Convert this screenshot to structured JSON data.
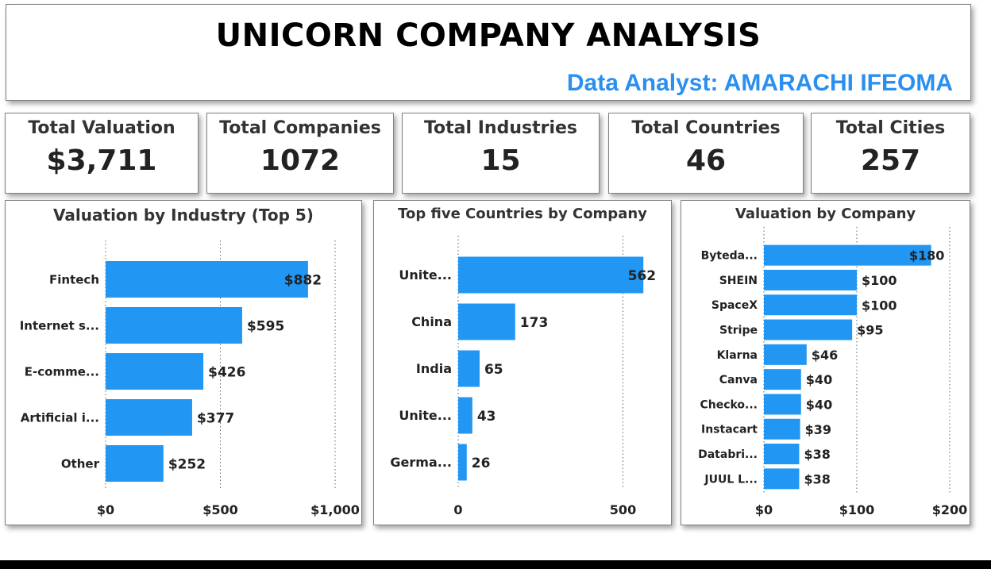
{
  "header": {
    "title": "UNICORN COMPANY ANALYSIS",
    "subtitle": "Data Analyst: AMARACHI IFEOMA"
  },
  "kpis": [
    {
      "label": "Total Valuation",
      "value": "$3,711"
    },
    {
      "label": "Total Companies",
      "value": "1072"
    },
    {
      "label": "Total Industries",
      "value": "15"
    },
    {
      "label": "Total Countries",
      "value": "46"
    },
    {
      "label": "Total Cities",
      "value": "257"
    }
  ],
  "colors": {
    "bar": "#2196f3",
    "subtitle": "#2b8ff0"
  },
  "chart_data": [
    {
      "type": "bar",
      "orientation": "horizontal",
      "title": "Valuation by Industry (Top 5)",
      "categories": [
        "Fintech",
        "Internet s...",
        "E-comme...",
        "Artificial i...",
        "Other"
      ],
      "values": [
        882,
        595,
        426,
        377,
        252
      ],
      "data_labels": [
        "$882",
        "$595",
        "$426",
        "$377",
        "$252"
      ],
      "xlim": [
        0,
        1000
      ],
      "xticks": [
        0,
        500,
        1000
      ],
      "xtick_labels": [
        "$0",
        "$500",
        "$1,000"
      ],
      "grid": "vertical dotted"
    },
    {
      "type": "bar",
      "orientation": "horizontal",
      "title": "Top five Countries by Company",
      "categories": [
        "Unite...",
        "China",
        "India",
        "Unite...",
        "Germa..."
      ],
      "values": [
        562,
        173,
        65,
        43,
        26
      ],
      "data_labels": [
        "562",
        "173",
        "65",
        "43",
        "26"
      ],
      "xlim": [
        0,
        600
      ],
      "xticks": [
        0,
        500
      ],
      "xtick_labels": [
        "0",
        "500"
      ],
      "grid": "vertical dotted"
    },
    {
      "type": "bar",
      "orientation": "horizontal",
      "title": "Valuation by Company",
      "categories": [
        "Byteda...",
        "SHEIN",
        "SpaceX",
        "Stripe",
        "Klarna",
        "Canva",
        "Checko...",
        "Instacart",
        "Databri...",
        "JUUL L..."
      ],
      "values": [
        180,
        100,
        100,
        95,
        46,
        40,
        40,
        39,
        38,
        38
      ],
      "data_labels": [
        "$180",
        "$100",
        "$100",
        "$95",
        "$46",
        "$40",
        "$40",
        "$39",
        "$38",
        "$38"
      ],
      "xlim": [
        0,
        200
      ],
      "xticks": [
        0,
        100,
        200
      ],
      "xtick_labels": [
        "$0",
        "$100",
        "$200"
      ],
      "grid": "vertical dotted"
    }
  ]
}
